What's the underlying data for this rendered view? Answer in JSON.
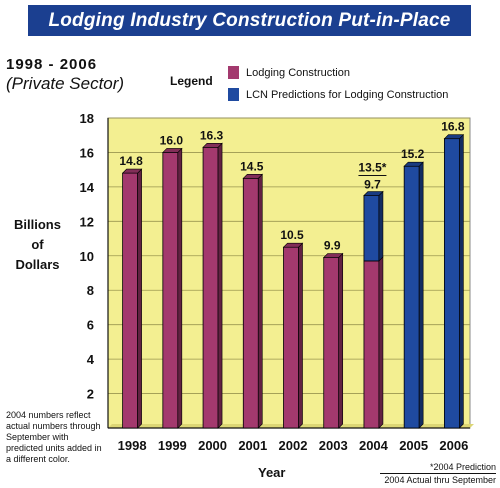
{
  "banner": {
    "title": "Lodging Industry Construction Put-in-Place"
  },
  "header": {
    "years": "1998 - 2006",
    "sector": "(Private Sector)"
  },
  "legend": {
    "title": "Legend",
    "items": [
      {
        "label": "Lodging Construction",
        "color": "#a3396e"
      },
      {
        "label": "LCN Predictions for Lodging Construction",
        "color": "#1f4aa0"
      }
    ]
  },
  "footnote": "2004 numbers reflect actual numbers through September with predicted units added in a different color.",
  "prediction_note": {
    "line1": "*2004 Prediction",
    "line2": "2004 Actual thru September"
  },
  "chart_data": {
    "type": "bar",
    "xlabel": "Year",
    "ylabel_lines": [
      "Billions",
      "of",
      "Dollars"
    ],
    "ylim": [
      0,
      18
    ],
    "yticks": [
      2,
      4,
      6,
      8,
      10,
      12,
      14,
      16,
      18
    ],
    "grid": true,
    "plot_background": "#f3ef91",
    "categories": [
      "1998",
      "1999",
      "2000",
      "2001",
      "2002",
      "2003",
      "2004",
      "2005",
      "2006"
    ],
    "series": [
      {
        "name": "Lodging Construction",
        "color": "#a3396e",
        "values": [
          14.8,
          16.0,
          16.3,
          14.5,
          10.5,
          9.9,
          9.7,
          null,
          null
        ]
      },
      {
        "name": "LCN Predictions for Lodging Construction",
        "color": "#1f4aa0",
        "values": [
          null,
          null,
          null,
          null,
          null,
          null,
          13.5,
          15.2,
          16.8
        ]
      }
    ],
    "data_labels": [
      "14.8",
      "16.0",
      "16.3",
      "14.5",
      "10.5",
      "9.9",
      "13.5*",
      "15.2",
      "16.8"
    ],
    "secondary_label": {
      "category": "2004",
      "text": "9.7"
    }
  }
}
